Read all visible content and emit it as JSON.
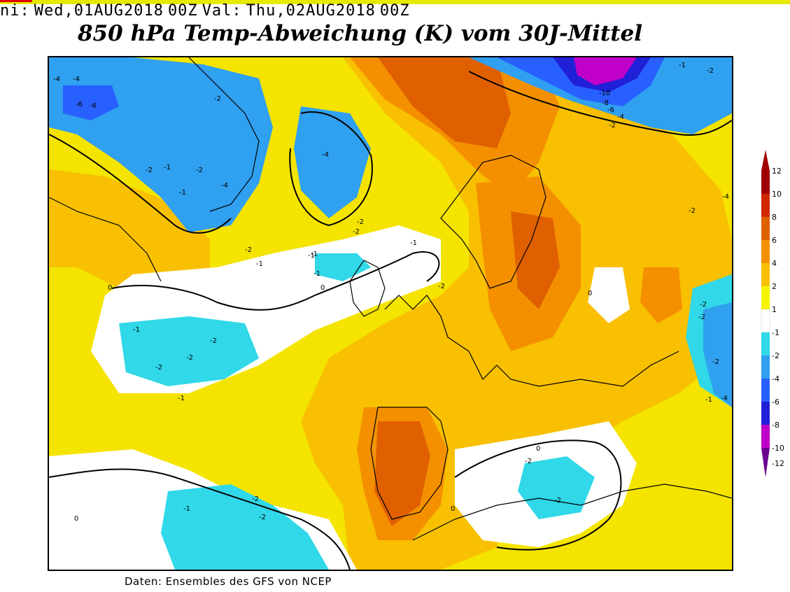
{
  "header": {
    "init_label": "ni:",
    "init_value": "Wed,01AUG2018",
    "init_hour": "00Z",
    "valid_label": "Val:",
    "valid_value": "Thu,02AUG2018",
    "valid_hour": "00Z"
  },
  "title": "850 hPa Temp-Abweichung (K) vom 30J-Mittel",
  "footer": "Daten: Ensembles des GFS von NCEP",
  "colors": {
    "minus12": "#6a0090",
    "minus10": "#c000c8",
    "minus8": "#2020d8",
    "minus6": "#2860ff",
    "minus4": "#30a0f0",
    "minus2": "#30d8e8",
    "minus1": "#ffffff",
    "plus1": "#ffffff",
    "plus2": "#f4f400",
    "plus4": "#f8c000",
    "plus6": "#f49000",
    "plus8": "#e06000",
    "plus10": "#d02800",
    "plus12": "#a00000"
  },
  "colorbar": {
    "labels": [
      "12",
      "10",
      "8",
      "6",
      "4",
      "2",
      "1",
      "-1",
      "-2",
      "-4",
      "-6",
      "-8",
      "-10",
      "-12"
    ]
  },
  "map_labels": {
    "l1": "-4",
    "l2": "-4",
    "l3": "-6",
    "l4": "-6",
    "l5": "-2",
    "l6": "-2",
    "l7": "-1",
    "l8": "-2",
    "l9": "-4",
    "l10": "-2",
    "l11": "-1",
    "l12": "-1",
    "l13": "-4",
    "l14": "-2",
    "l15": "-1",
    "l16": "0",
    "l17": "-1",
    "l18": "-2",
    "l19": "-2",
    "l20": "-2",
    "l21": "-1",
    "l22": "0",
    "l23": "-1",
    "l24": "-2",
    "l25": "-2",
    "l26": "-1",
    "l27": "0",
    "l28": "-10",
    "l29": "-8",
    "l30": "-6",
    "l31": "-4",
    "l32": "-2",
    "l33": "-1",
    "l34": "-2",
    "l35": "-2",
    "l36": "-2",
    "l37": "-2",
    "l38": "-4",
    "l39": "-2",
    "l40": "-1",
    "l41": "-2",
    "l42": "-2",
    "l43": "0",
    "l44": "0",
    "l45": "-1",
    "l46": "-2",
    "l47": "-4",
    "l48": "-1",
    "l49": "-2",
    "l50": "0"
  }
}
